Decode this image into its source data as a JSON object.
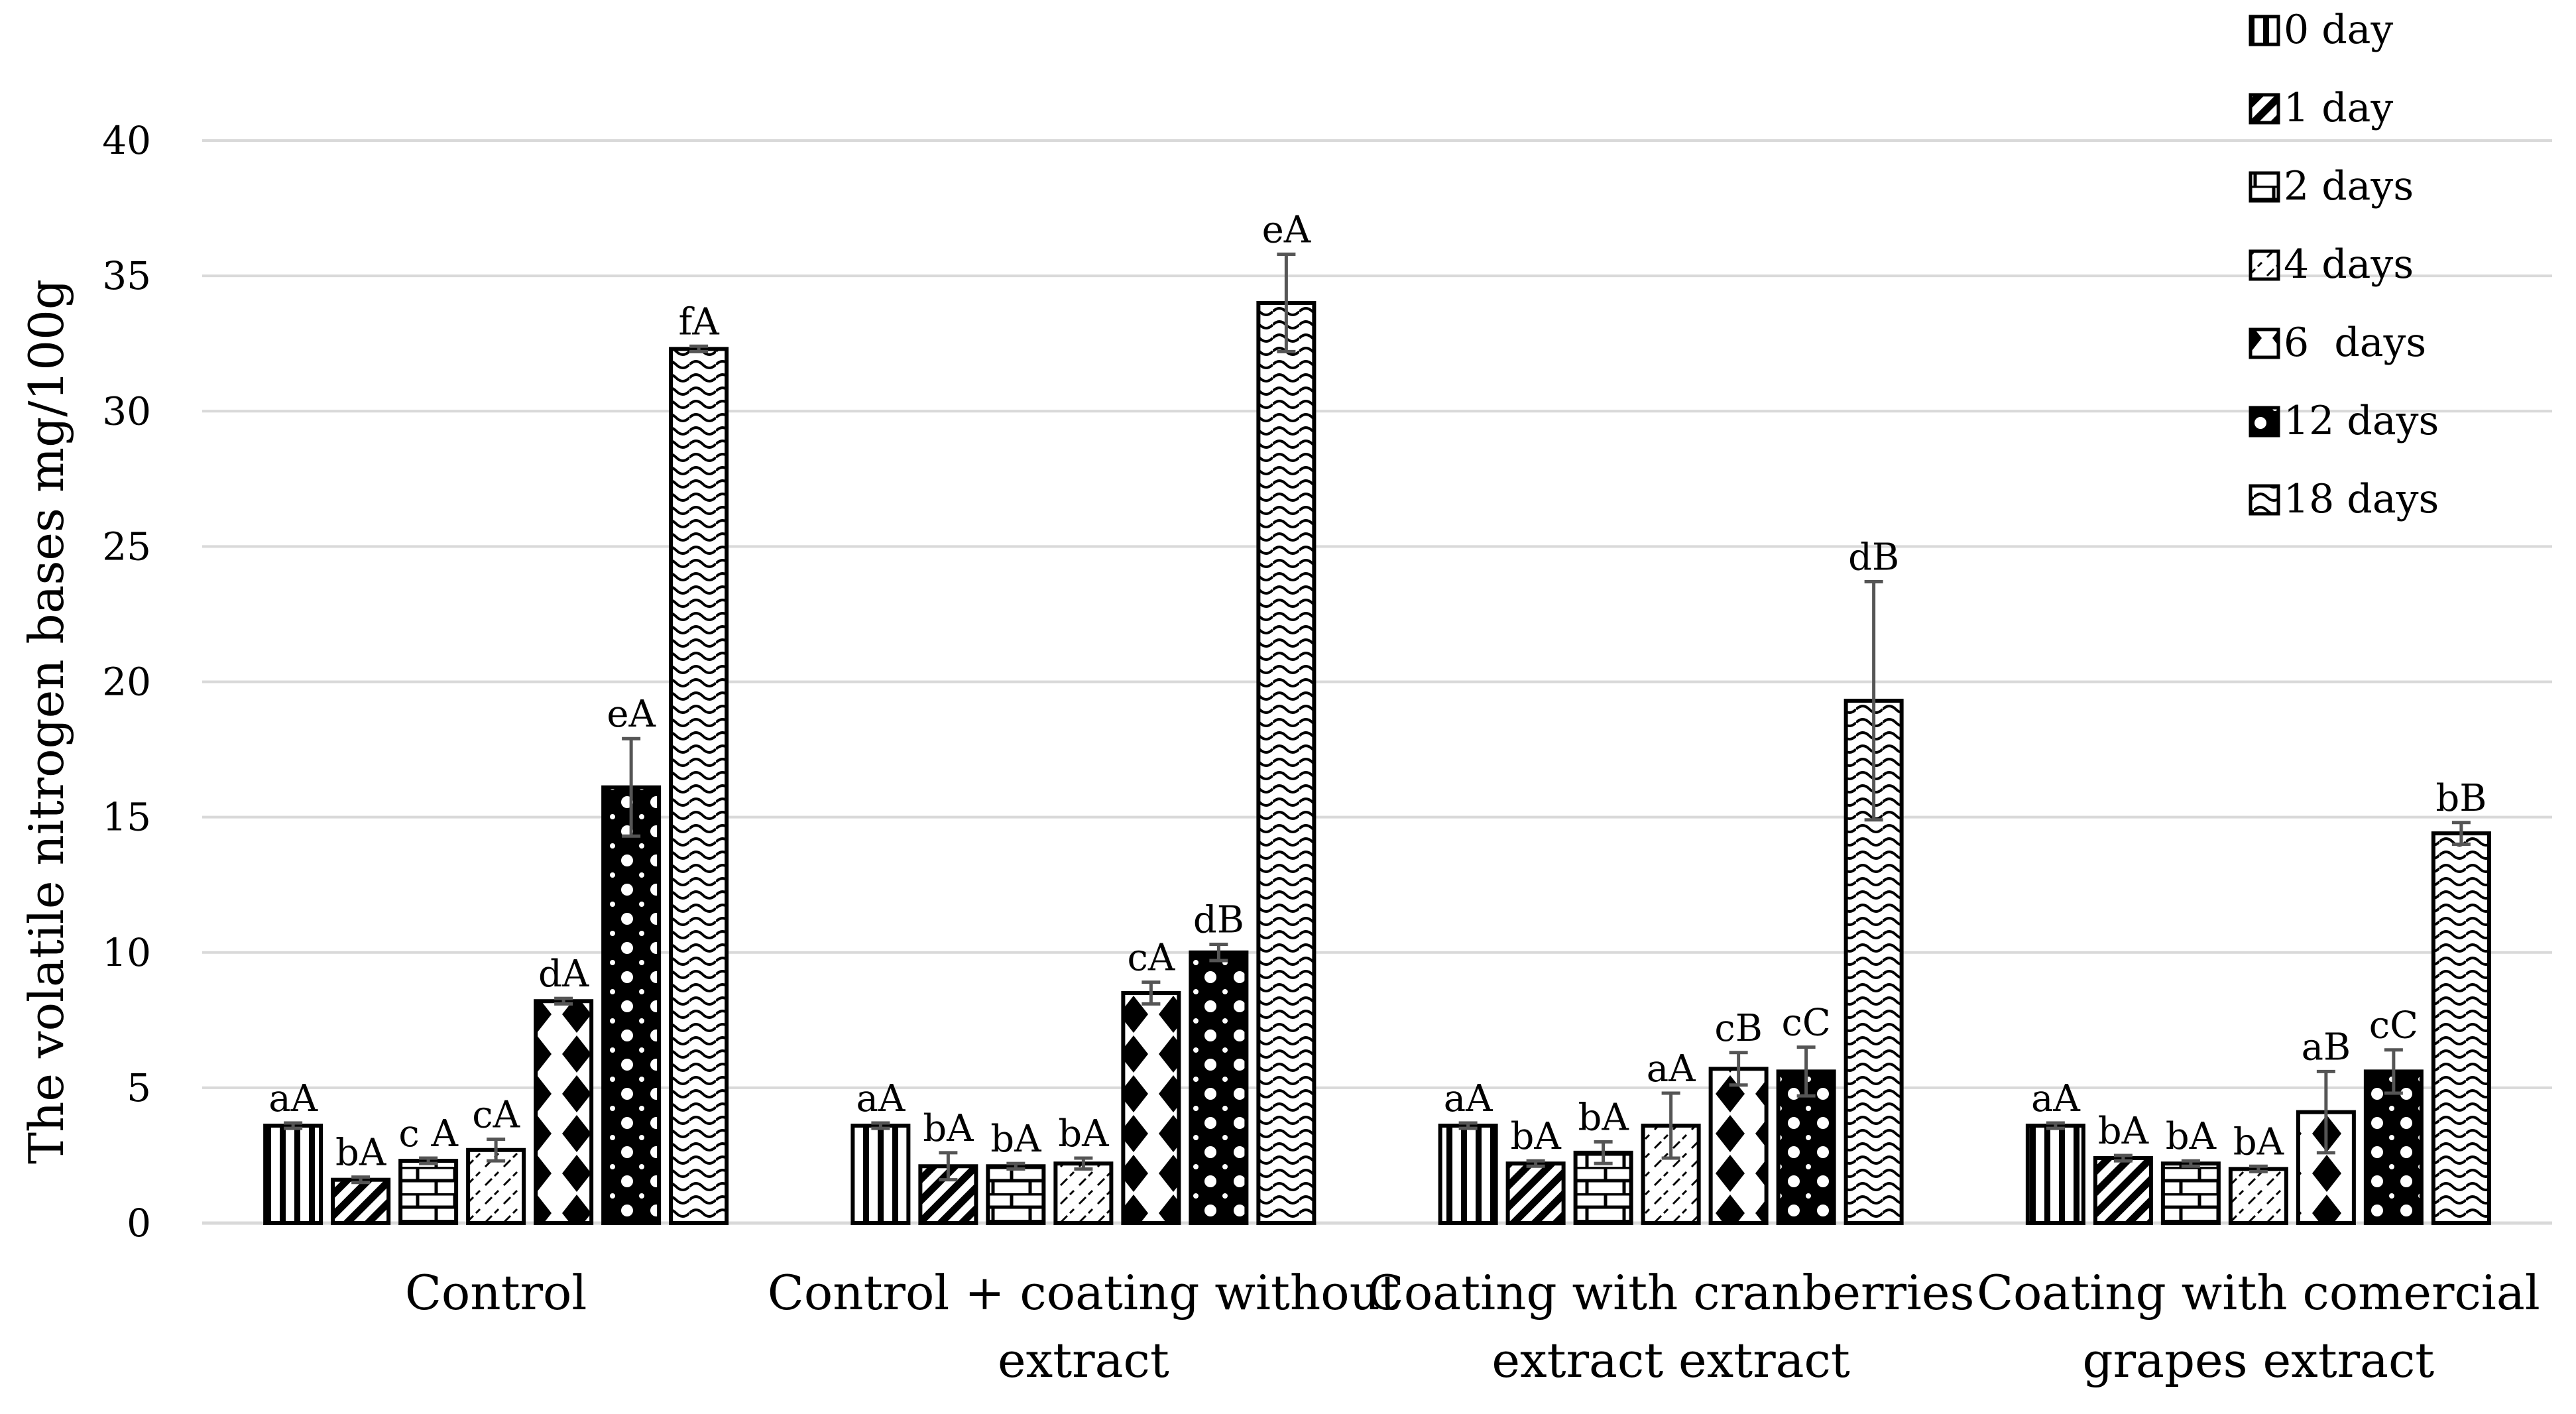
{
  "chart_data": {
    "type": "bar",
    "title": "",
    "ylabel": "The volatile nitrogen bases mg/100g",
    "xlabel": "",
    "ylim": [
      0,
      40
    ],
    "yticks": [
      0,
      5,
      10,
      15,
      20,
      25,
      30,
      35,
      40
    ],
    "grid": true,
    "legend_position": "top-right",
    "categories": [
      [
        "Control"
      ],
      [
        "Control + coating without",
        "extract"
      ],
      [
        "Coating with cranberries",
        "extract extract"
      ],
      [
        "Coating with comercial",
        "grapes extract"
      ]
    ],
    "series": [
      {
        "name": "0 day",
        "pattern": "vertical-lines",
        "values": [
          3.6,
          3.6,
          3.6,
          3.6
        ],
        "errors": [
          0.1,
          0.1,
          0.1,
          0.1
        ],
        "labels": [
          "aA",
          "aA",
          "aA",
          "aA"
        ]
      },
      {
        "name": "1 day",
        "pattern": "diagonal-lines",
        "values": [
          1.6,
          2.1,
          2.2,
          2.4
        ],
        "errors": [
          0.1,
          0.5,
          0.1,
          0.1
        ],
        "labels": [
          "bA",
          "bA",
          "bA",
          "bA"
        ]
      },
      {
        "name": "2 days",
        "pattern": "bricks",
        "values": [
          2.3,
          2.1,
          2.6,
          2.2
        ],
        "errors": [
          0.1,
          0.1,
          0.4,
          0.1
        ],
        "labels": [
          "c A",
          "bA",
          "bA",
          "bA"
        ]
      },
      {
        "name": "4 days",
        "pattern": "dashed-diagonal",
        "values": [
          2.7,
          2.2,
          3.6,
          2.0
        ],
        "errors": [
          0.4,
          0.2,
          1.2,
          0.1
        ],
        "labels": [
          "cA",
          "bA",
          "aA",
          "bA"
        ]
      },
      {
        "name": "6  days",
        "pattern": "large-diamonds",
        "values": [
          8.2,
          8.5,
          5.7,
          4.1
        ],
        "errors": [
          0.1,
          0.4,
          0.6,
          1.5
        ],
        "labels": [
          "dA",
          "cA",
          "cB",
          "aB"
        ]
      },
      {
        "name": "12 days",
        "pattern": "dots",
        "values": [
          16.1,
          10.0,
          5.6,
          5.6
        ],
        "errors": [
          1.8,
          0.3,
          0.9,
          0.8
        ],
        "labels": [
          "eA",
          "dB",
          "cC",
          "cC"
        ]
      },
      {
        "name": "18 days",
        "pattern": "waves",
        "values": [
          32.3,
          34.0,
          19.3,
          14.4
        ],
        "errors": [
          0.1,
          1.8,
          4.4,
          0.4
        ],
        "labels": [
          "fA",
          "eA",
          "dB",
          "bB"
        ]
      }
    ]
  }
}
